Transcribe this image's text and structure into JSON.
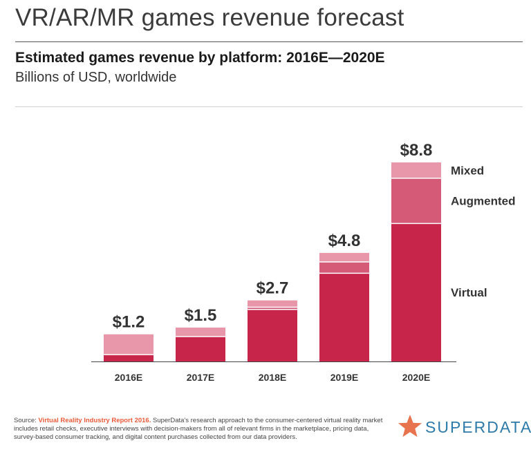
{
  "header": {
    "title": "VR/AR/MR games revenue forecast",
    "subtitle": "Estimated games revenue by platform: 2016E—2020E",
    "units": "Billions of USD, worldwide"
  },
  "chart_data": {
    "type": "bar",
    "stacked": true,
    "categories": [
      "2016E",
      "2017E",
      "2018E",
      "2019E",
      "2020E"
    ],
    "series": [
      {
        "name": "Virtual",
        "color": "#c8254b",
        "values": [
          0.3,
          1.1,
          2.3,
          3.9,
          6.1
        ]
      },
      {
        "name": "Augmented",
        "color": "#d55a78",
        "values": [
          0.0,
          0.0,
          0.1,
          0.5,
          2.0
        ]
      },
      {
        "name": "Mixed",
        "color": "#e897aa",
        "values": [
          0.9,
          0.4,
          0.3,
          0.4,
          0.7
        ]
      }
    ],
    "totals": [
      "$1.2",
      "$1.5",
      "$2.7",
      "$4.8",
      "$8.8"
    ],
    "total_values": [
      1.2,
      1.5,
      2.7,
      4.8,
      8.8
    ],
    "legend": "inline-right",
    "grid": false,
    "ylim": [
      0,
      8.8
    ]
  },
  "footer": {
    "source_prefix": "Source: ",
    "source_link": "Virtual Reality Industry Report 2016.",
    "source_text": " SuperData's research approach to the consumer-centered virtual reality market includes retail checks, executive interviews with decision-makers from all of relevant firms in the marketplace, pricing data, survey-based consumer tracking, and digital content purchases collected from our data providers."
  },
  "brand": {
    "name": "SUPERDATA",
    "color": "#2e7aa8",
    "star_color": "#e8734f",
    "icon": "star-icon"
  }
}
